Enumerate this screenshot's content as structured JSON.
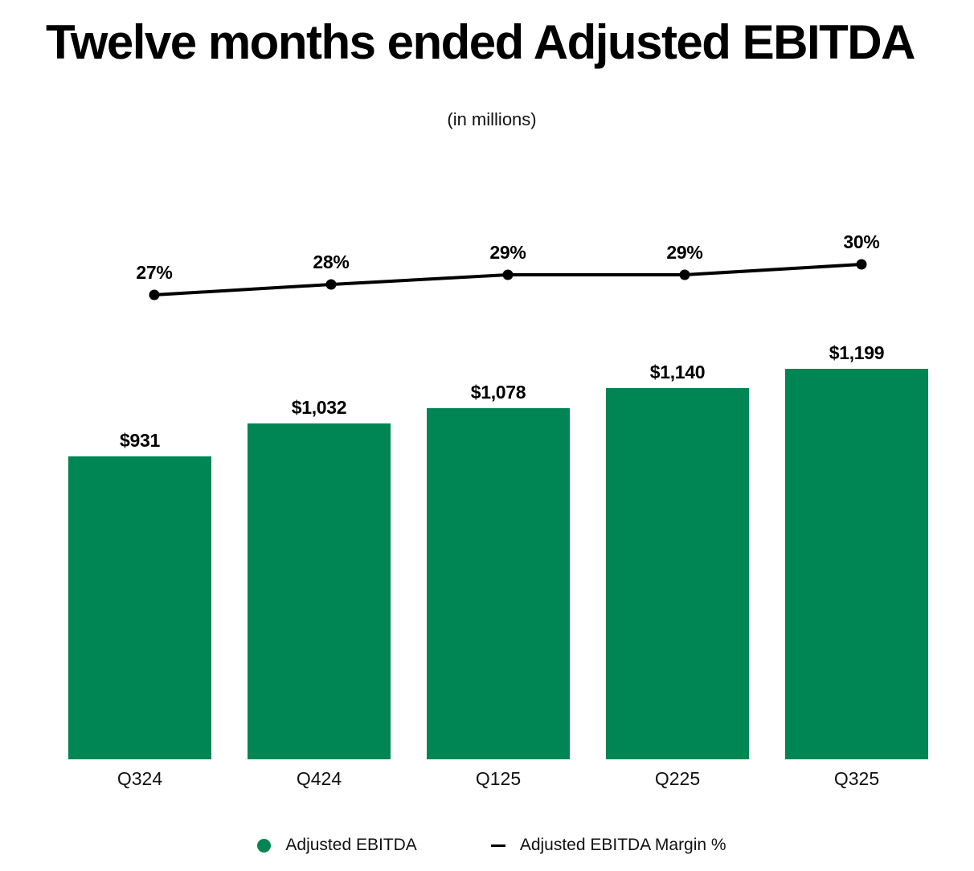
{
  "title": "Twelve months ended Adjusted EBITDA",
  "subtitle": "(in millions)",
  "colors": {
    "bar_green": "#008554",
    "line_black": "#000000",
    "text_black": "#000000",
    "background": "#ffffff"
  },
  "legend": {
    "position": "bottom",
    "items": [
      {
        "swatch": "circle",
        "color": "#008554",
        "label": "Adjusted EBITDA"
      },
      {
        "swatch": "dash",
        "color": "#000000",
        "label": "Adjusted EBITDA Margin %"
      }
    ]
  },
  "chart_data": {
    "type": "bar",
    "title": "Twelve months ended Adjusted EBITDA",
    "subtitle": "(in millions)",
    "categories": [
      "Q324",
      "Q424",
      "Q125",
      "Q225",
      "Q325"
    ],
    "series": [
      {
        "name": "Adjusted EBITDA",
        "type": "bar",
        "color": "#008554",
        "values": [
          931,
          1032,
          1078,
          1140,
          1199
        ],
        "labels": [
          "$931",
          "$1,032",
          "$1,078",
          "$1,140",
          "$1,199"
        ],
        "unit": "USD millions"
      },
      {
        "name": "Adjusted EBITDA Margin %",
        "type": "line",
        "color": "#000000",
        "values": [
          27,
          28,
          29,
          29,
          30
        ],
        "labels": [
          "27%",
          "28%",
          "29%",
          "29%",
          "30%"
        ],
        "unit": "percent"
      }
    ],
    "xlabel": "",
    "ylabel": "",
    "ylim": [
      0,
      1300
    ],
    "grid": false,
    "axes_visible": false,
    "legend_position": "bottom"
  }
}
